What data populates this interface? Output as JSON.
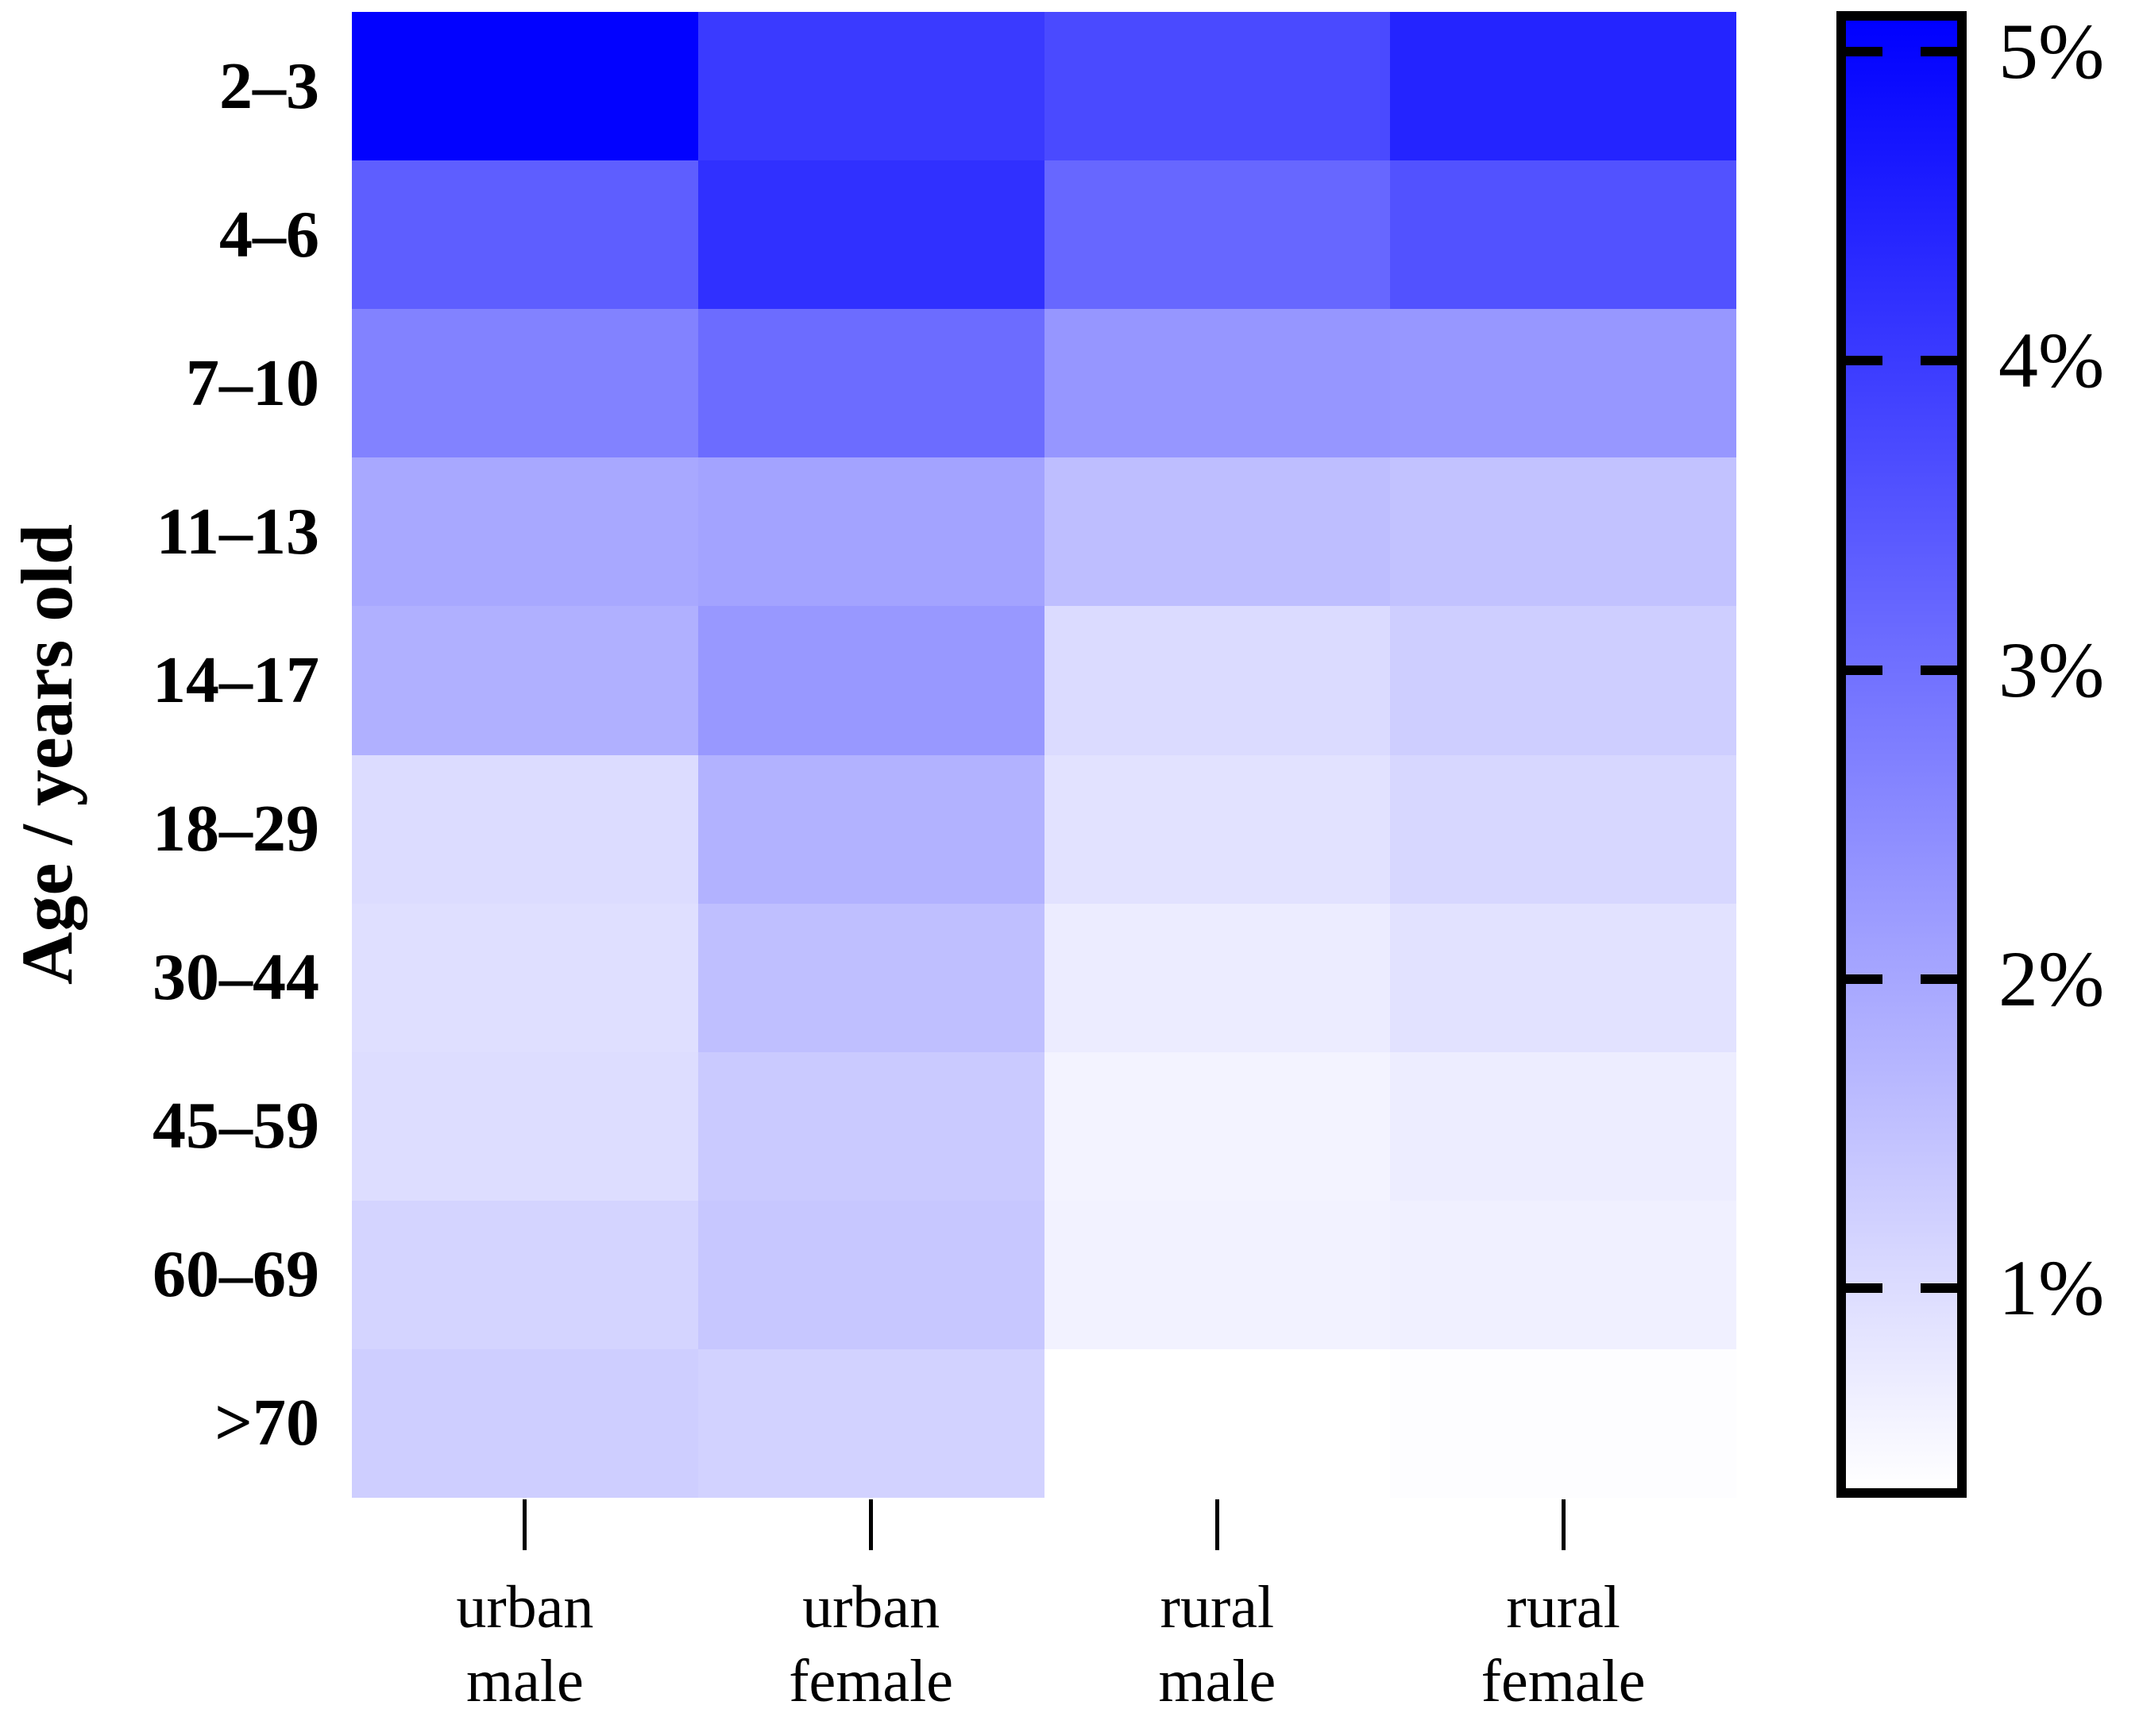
{
  "figure": {
    "background_color": "#ffffff",
    "text_color": "#000000"
  },
  "chart_data": {
    "type": "heatmap",
    "title": "",
    "xlabel": "",
    "ylabel": "Age / years old",
    "unit": "%",
    "rows": [
      "2–3",
      "4–6",
      "7–10",
      "11–13",
      "14–17",
      "18–29",
      "30–44",
      "45–59",
      "60–69",
      ">70"
    ],
    "columns": [
      "urban male",
      "urban female",
      "rural male",
      "rural female"
    ],
    "column_label_lines": [
      [
        "urban",
        "male"
      ],
      [
        "urban",
        "female"
      ],
      [
        "rural",
        "male"
      ],
      [
        "rural",
        "female"
      ]
    ],
    "values": [
      [
        5.06,
        4.02,
        3.73,
        4.43
      ],
      [
        3.36,
        4.21,
        3.19,
        3.58
      ],
      [
        2.69,
        3.1,
        2.32,
        2.3
      ],
      [
        1.98,
        2.08,
        1.58,
        1.5
      ],
      [
        1.84,
        2.28,
        1.04,
        1.28
      ],
      [
        1.02,
        1.8,
        0.91,
        1.11
      ],
      [
        0.96,
        1.56,
        0.72,
        0.91
      ],
      [
        1.0,
        1.35,
        0.59,
        0.7
      ],
      [
        1.17,
        1.41,
        0.61,
        0.65
      ],
      [
        1.28,
        1.2,
        0.37,
        0.41
      ]
    ],
    "colormap": {
      "min_color": "#ffffff",
      "max_color": "#0000ff",
      "vmin": 0.37,
      "vmax": 5.1
    },
    "colorbar": {
      "position": "right",
      "tick_values": [
        5,
        4,
        3,
        2,
        1
      ],
      "tick_labels": [
        "5%",
        "4%",
        "3%",
        "2%",
        "1%"
      ]
    },
    "grid": false,
    "legend_position": "right-colorbar"
  }
}
